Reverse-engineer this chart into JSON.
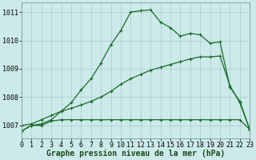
{
  "line1_x": [
    0,
    1,
    2,
    3,
    4,
    5,
    6,
    7,
    8,
    9,
    10,
    11,
    12,
    13,
    14,
    15,
    16,
    17,
    18,
    19,
    20,
    21,
    22,
    23
  ],
  "line1_y": [
    1006.8,
    1007.0,
    1007.0,
    1007.15,
    1007.2,
    1007.2,
    1007.2,
    1007.2,
    1007.2,
    1007.2,
    1007.2,
    1007.2,
    1007.2,
    1007.2,
    1007.2,
    1007.2,
    1007.2,
    1007.2,
    1007.2,
    1007.2,
    1007.2,
    1007.2,
    1007.2,
    1006.85
  ],
  "line2_x": [
    0,
    1,
    2,
    3,
    4,
    5,
    6,
    7,
    8,
    9,
    10,
    11,
    12,
    13,
    14,
    15,
    16,
    17,
    18,
    19,
    20,
    21,
    22,
    23
  ],
  "line2_y": [
    1007.0,
    1007.05,
    1007.2,
    1007.35,
    1007.5,
    1007.6,
    1007.72,
    1007.85,
    1008.0,
    1008.2,
    1008.45,
    1008.65,
    1008.8,
    1008.95,
    1009.05,
    1009.15,
    1009.25,
    1009.35,
    1009.42,
    1009.42,
    1009.45,
    1008.4,
    1007.8,
    1006.85
  ],
  "line3_x": [
    0,
    1,
    2,
    3,
    4,
    5,
    6,
    7,
    8,
    9,
    10,
    11,
    12,
    13,
    14,
    15,
    16,
    17,
    18,
    19,
    20,
    21,
    22,
    23
  ],
  "line3_y": [
    1006.8,
    1007.0,
    1007.05,
    1007.2,
    1007.5,
    1007.8,
    1008.25,
    1008.65,
    1009.2,
    1009.85,
    1010.35,
    1011.0,
    1011.05,
    1011.08,
    1010.65,
    1010.45,
    1010.15,
    1010.25,
    1010.2,
    1009.9,
    1009.95,
    1008.35,
    1007.85,
    1006.85
  ],
  "line_color": "#1a6b2a",
  "bg_color": "#cdeaea",
  "grid_color": "#a8cccc",
  "xlabel": "Graphe pression niveau de la mer (hPa)",
  "ylabel_ticks": [
    1007,
    1008,
    1009,
    1010,
    1011
  ],
  "xlim": [
    0,
    23
  ],
  "ylim": [
    1006.55,
    1011.35
  ],
  "xticks": [
    0,
    1,
    2,
    3,
    4,
    5,
    6,
    7,
    8,
    9,
    10,
    11,
    12,
    13,
    14,
    15,
    16,
    17,
    18,
    19,
    20,
    21,
    22,
    23
  ],
  "xlabel_fontsize": 7.0,
  "tick_fontsize": 6.0,
  "marker": "+",
  "lw": 0.9,
  "ms": 3.0
}
